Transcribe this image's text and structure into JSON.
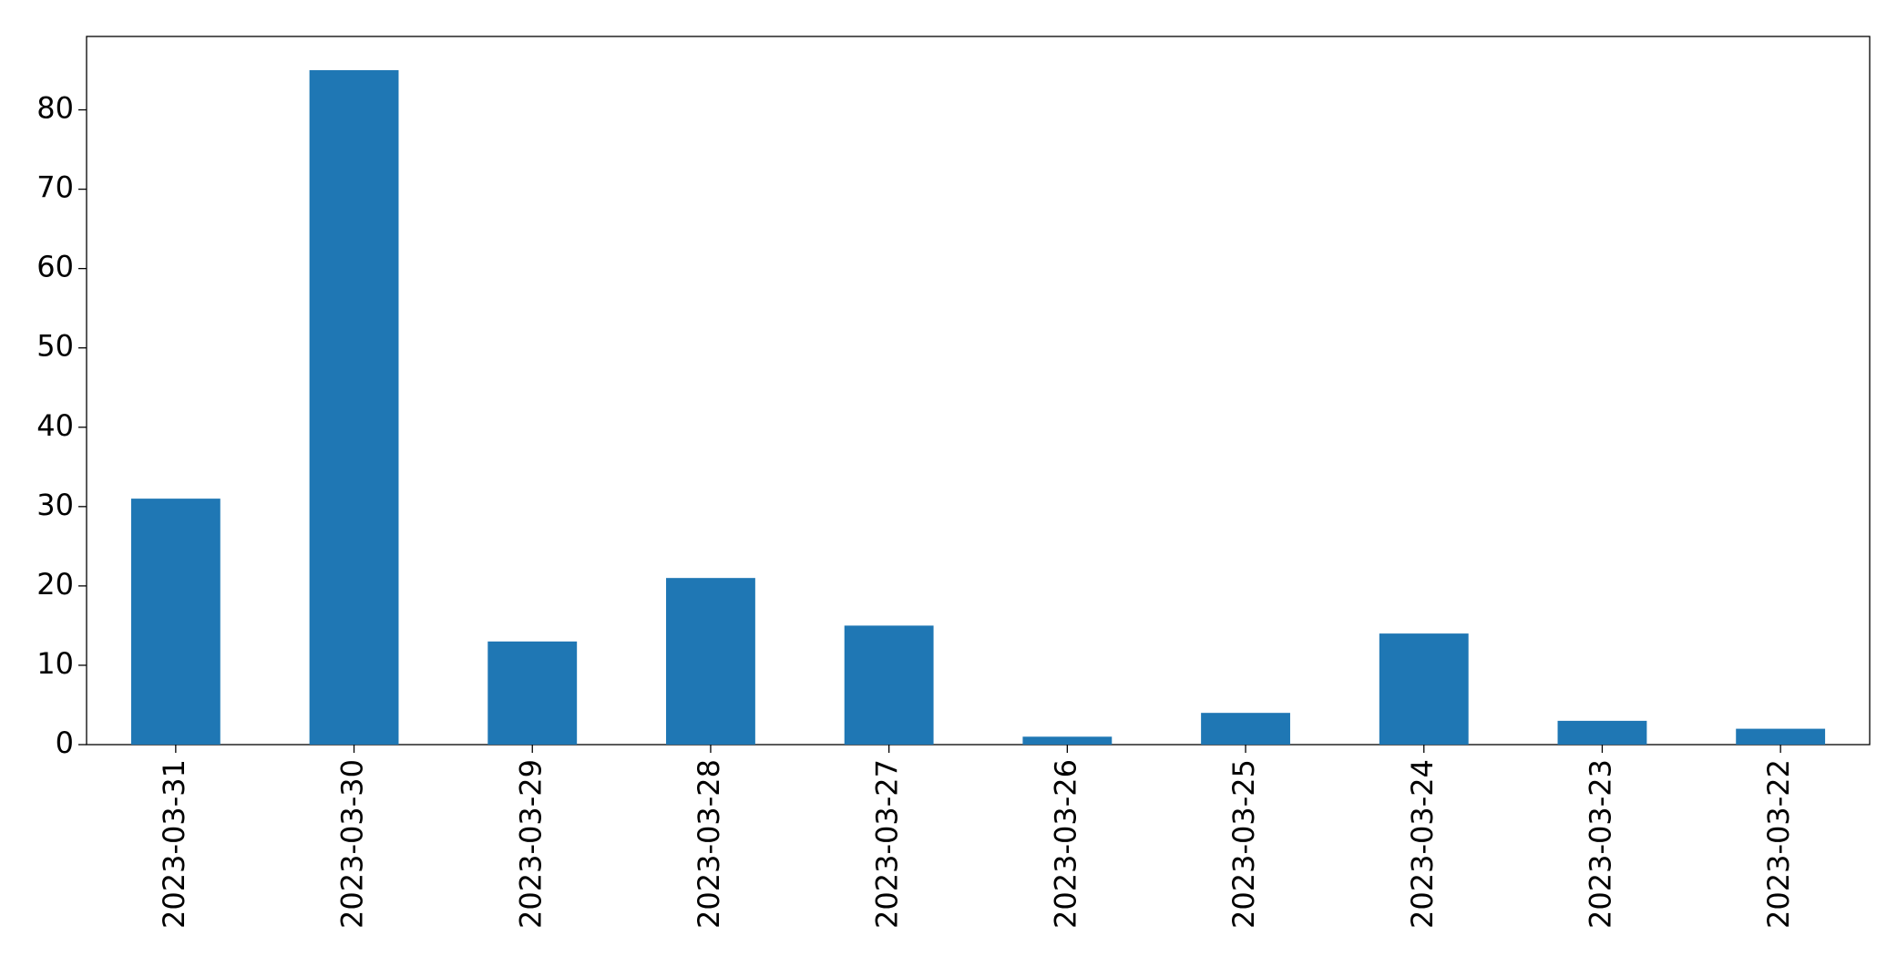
{
  "chart_data": {
    "type": "bar",
    "categories": [
      "2023-03-31",
      "2023-03-30",
      "2023-03-29",
      "2023-03-28",
      "2023-03-27",
      "2023-03-26",
      "2023-03-25",
      "2023-03-24",
      "2023-03-23",
      "2023-03-22"
    ],
    "values": [
      31,
      85,
      13,
      21,
      15,
      1,
      4,
      14,
      3,
      2
    ],
    "color": "#1f77b4",
    "ylim": [
      0,
      89.25
    ],
    "yticks": [
      0,
      10,
      20,
      30,
      40,
      50,
      60,
      70,
      80
    ]
  }
}
